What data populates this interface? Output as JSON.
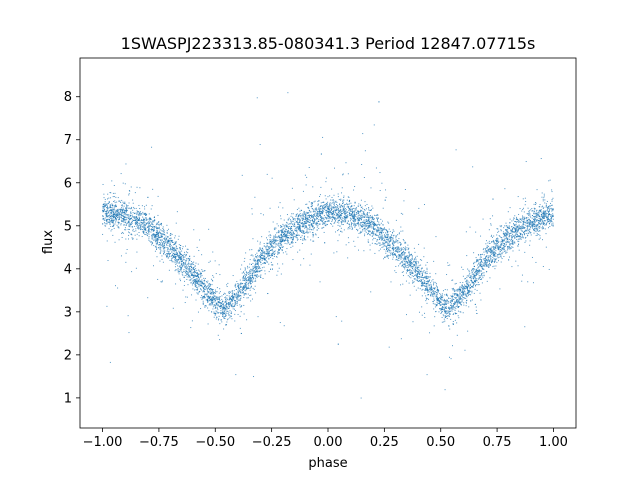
{
  "chart_data": {
    "type": "scatter",
    "title": "1SWASPJ223313.85-080341.3 Period 12847.07715s",
    "xlabel": "phase",
    "ylabel": "flux",
    "xlim": [
      -1.1,
      1.1
    ],
    "ylim": [
      0.3,
      8.9
    ],
    "xticks": [
      -1.0,
      -0.75,
      -0.5,
      -0.25,
      0.0,
      0.25,
      0.5,
      0.75,
      1.0
    ],
    "xtick_labels": [
      "−1.00",
      "−0.75",
      "−0.50",
      "−0.25",
      "0.00",
      "0.25",
      "0.50",
      "0.75",
      "1.00"
    ],
    "yticks": [
      1,
      2,
      3,
      4,
      5,
      6,
      7,
      8
    ],
    "ytick_labels": [
      "1",
      "2",
      "3",
      "4",
      "5",
      "6",
      "7",
      "8"
    ],
    "grid": false,
    "color": "#1f77b4",
    "series": [
      {
        "light_curve": [
          [
            -1.0,
            5.3
          ],
          [
            -0.9,
            5.25
          ],
          [
            -0.8,
            5.0
          ],
          [
            -0.7,
            4.5
          ],
          [
            -0.6,
            3.9
          ],
          [
            -0.5,
            3.2
          ],
          [
            -0.46,
            3.05
          ],
          [
            -0.4,
            3.4
          ],
          [
            -0.3,
            4.2
          ],
          [
            -0.2,
            4.75
          ],
          [
            -0.1,
            5.1
          ],
          [
            0.0,
            5.3
          ],
          [
            0.1,
            5.25
          ],
          [
            0.2,
            5.0
          ],
          [
            0.3,
            4.5
          ],
          [
            0.4,
            3.9
          ],
          [
            0.5,
            3.2
          ],
          [
            0.54,
            3.05
          ],
          [
            0.6,
            3.4
          ],
          [
            0.7,
            4.2
          ],
          [
            0.8,
            4.75
          ],
          [
            0.9,
            5.1
          ],
          [
            1.0,
            5.3
          ]
        ]
      }
    ]
  }
}
